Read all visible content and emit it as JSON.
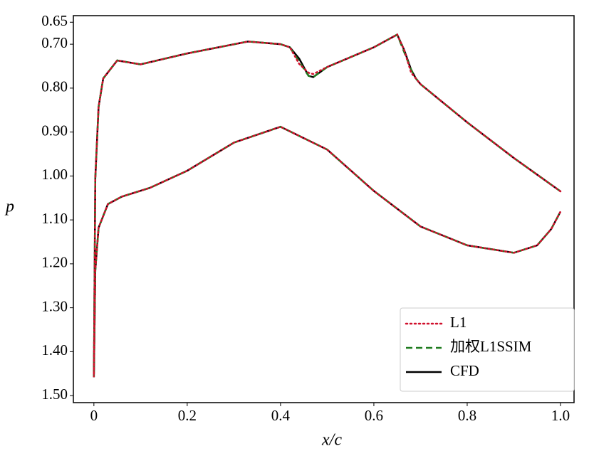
{
  "chart_data": {
    "type": "line",
    "x_label": "x/c",
    "y_label": "p",
    "xlim": [
      -0.044,
      1.029
    ],
    "ylim": [
      1.516,
      0.635
    ],
    "xticks": [
      0,
      0.2,
      0.4,
      0.6,
      0.8,
      {
        "value": 1.0,
        "label": "1.0"
      }
    ],
    "yticks": [
      0.65,
      {
        "value": 0.7,
        "label": "0.70"
      },
      {
        "value": 0.8,
        "label": "0.80"
      },
      {
        "value": 0.9,
        "label": "0.90"
      },
      {
        "value": 1.0,
        "label": "1.00"
      },
      {
        "value": 1.1,
        "label": "1.10"
      },
      {
        "value": 1.2,
        "label": "1.20"
      },
      {
        "value": 1.3,
        "label": "1.30"
      },
      {
        "value": 1.4,
        "label": "1.40"
      },
      {
        "value": 1.5,
        "label": "1.50"
      }
    ],
    "grid": false,
    "legend": "lower right",
    "x": [
      1.0,
      0.9,
      0.8,
      0.7,
      0.69,
      0.68,
      0.665,
      0.65,
      0.6,
      0.5,
      0.47,
      0.46,
      0.44,
      0.42,
      0.4,
      0.33,
      0.2,
      0.1,
      0.05,
      0.02,
      0.01,
      0.003,
      0,
      0.003,
      0.01,
      0.03,
      0.06,
      0.12,
      0.2,
      0.3,
      0.4,
      0.5,
      0.6,
      0.7,
      0.8,
      0.9,
      0.95,
      0.98,
      1.0
    ],
    "series": [
      {
        "name": "CFD",
        "color": "#000000",
        "style": "solid",
        "values": [
          1.035,
          0.959,
          0.878,
          0.791,
          0.778,
          0.758,
          0.713,
          0.678,
          0.707,
          0.752,
          0.775,
          0.772,
          0.733,
          0.707,
          0.7,
          0.694,
          0.721,
          0.746,
          0.737,
          0.778,
          0.843,
          1.005,
          1.458,
          1.215,
          1.118,
          1.064,
          1.047,
          1.027,
          0.988,
          0.924,
          0.888,
          0.94,
          1.034,
          1.115,
          1.158,
          1.175,
          1.158,
          1.121,
          1.081
        ]
      },
      {
        "name": "加权L1SSIM",
        "color": "#1e7b1e",
        "style": "dashed",
        "values": [
          1.035,
          0.959,
          0.878,
          0.791,
          0.778,
          0.758,
          0.718,
          0.678,
          0.707,
          0.752,
          0.775,
          0.772,
          0.74,
          0.707,
          0.7,
          0.694,
          0.721,
          0.746,
          0.737,
          0.778,
          0.843,
          1.005,
          1.458,
          1.215,
          1.118,
          1.064,
          1.047,
          1.027,
          0.988,
          0.924,
          0.888,
          0.94,
          1.034,
          1.115,
          1.158,
          1.175,
          1.158,
          1.121,
          1.081
        ]
      },
      {
        "name": "L1",
        "color": "#d0102c",
        "style": "dotted",
        "values": [
          1.035,
          0.959,
          0.878,
          0.791,
          0.778,
          0.765,
          0.713,
          0.678,
          0.707,
          0.752,
          0.768,
          0.765,
          0.745,
          0.707,
          0.7,
          0.694,
          0.721,
          0.746,
          0.737,
          0.778,
          0.843,
          1.005,
          1.458,
          1.215,
          1.118,
          1.064,
          1.047,
          1.027,
          0.988,
          0.924,
          0.888,
          0.94,
          1.034,
          1.115,
          1.158,
          1.175,
          1.158,
          1.121,
          1.081
        ]
      }
    ]
  }
}
